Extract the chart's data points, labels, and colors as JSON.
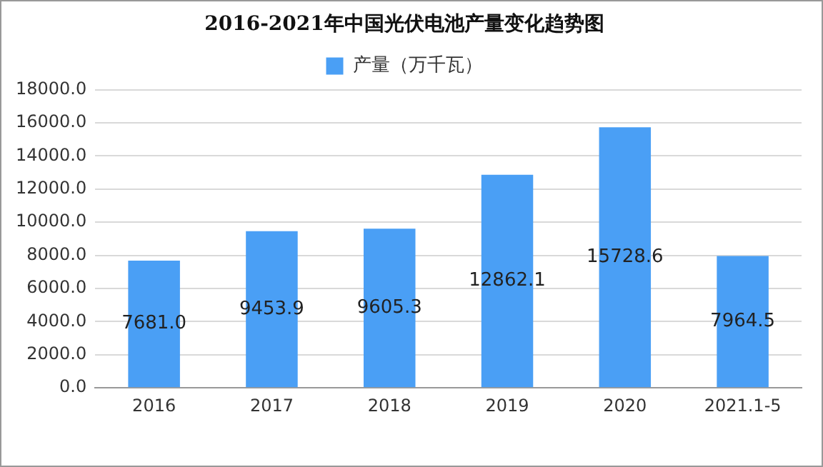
{
  "chart_data": {
    "type": "bar",
    "title": "2016-2021年中国光伏电池产量变化趋势图",
    "categories": [
      "2016",
      "2017",
      "2018",
      "2019",
      "2020",
      "2021.1-5"
    ],
    "series": [
      {
        "name": "产量（万千瓦）",
        "color": "#4a9ff5",
        "values": [
          7681.0,
          9453.9,
          9605.3,
          12862.1,
          15728.6,
          7964.5
        ],
        "value_labels": [
          "7681.0",
          "9453.9",
          "9605.3",
          "12862.1",
          "15728.6",
          "7964.5"
        ]
      }
    ],
    "ylim": [
      0,
      18000
    ],
    "yticks": [
      {
        "value": 0,
        "label": "0.0"
      },
      {
        "value": 2000,
        "label": "2000.0"
      },
      {
        "value": 4000,
        "label": "4000.0"
      },
      {
        "value": 6000,
        "label": "6000.0"
      },
      {
        "value": 8000,
        "label": "8000.0"
      },
      {
        "value": 10000,
        "label": "10000.0"
      },
      {
        "value": 12000,
        "label": "12000.0"
      },
      {
        "value": 14000,
        "label": "14000.0"
      },
      {
        "value": 16000,
        "label": "16000.0"
      },
      {
        "value": 18000,
        "label": "18000.0"
      }
    ],
    "grid": "y",
    "legend": "top"
  }
}
